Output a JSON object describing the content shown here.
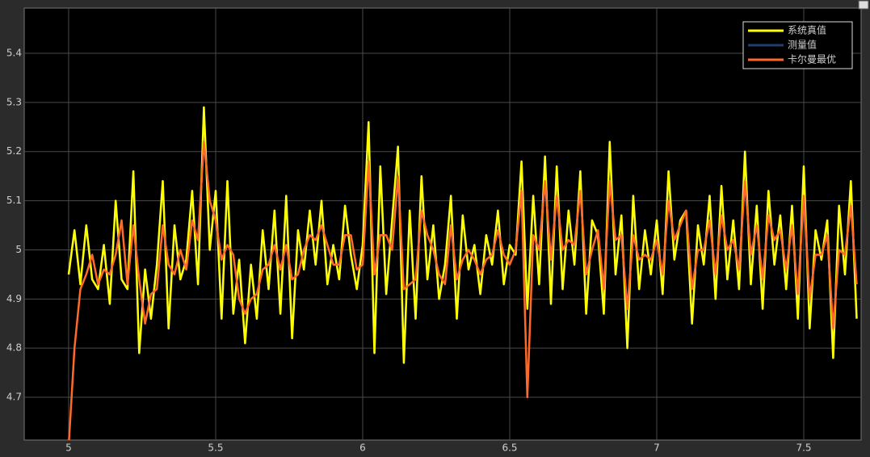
{
  "chart_data": {
    "type": "line",
    "x": [
      5,
      5.02,
      5.04,
      5.06,
      5.08,
      5.1,
      5.12,
      5.14,
      5.16,
      5.18,
      5.2,
      5.22,
      5.24,
      5.26,
      5.28,
      5.3,
      5.32,
      5.34,
      5.36,
      5.38,
      5.4,
      5.42,
      5.44,
      5.46,
      5.48,
      5.5,
      5.52,
      5.54,
      5.56,
      5.58,
      5.6,
      5.62,
      5.64,
      5.66,
      5.68,
      5.7,
      5.72,
      5.74,
      5.76,
      5.78,
      5.8,
      5.82,
      5.84,
      5.86,
      5.88,
      5.9,
      5.92,
      5.94,
      5.96,
      5.98,
      6,
      6.02,
      6.04,
      6.06,
      6.08,
      6.1,
      6.12,
      6.14,
      6.16,
      6.18,
      6.2,
      6.22,
      6.24,
      6.26,
      6.28,
      6.3,
      6.32,
      6.34,
      6.36,
      6.38,
      6.4,
      6.42,
      6.44,
      6.46,
      6.48,
      6.5,
      6.52,
      6.54,
      6.56,
      6.58,
      6.6,
      6.62,
      6.64,
      6.66,
      6.68,
      6.7,
      6.72,
      6.74,
      6.76,
      6.78,
      6.8,
      6.82,
      6.84,
      6.86,
      6.88,
      6.9,
      6.92,
      6.94,
      6.96,
      6.98,
      7,
      7.02,
      7.04,
      7.06,
      7.08,
      7.1,
      7.12,
      7.14,
      7.16,
      7.18,
      7.2,
      7.22,
      7.24,
      7.26,
      7.28,
      7.3,
      7.32,
      7.34,
      7.36,
      7.38,
      7.4,
      7.42,
      7.44,
      7.46,
      7.48,
      7.5,
      7.52,
      7.54,
      7.56,
      7.58,
      7.6,
      7.62,
      7.64,
      7.66,
      7.68
    ],
    "series": [
      {
        "name": "测量值",
        "color": "#1f3f6e",
        "values": [
          4.95,
          5.04,
          4.93,
          5.05,
          4.94,
          4.92,
          5.01,
          4.89,
          5.1,
          4.94,
          4.92,
          5.16,
          4.79,
          4.96,
          4.86,
          4.97,
          5.14,
          4.84,
          5.05,
          4.94,
          4.98,
          5.12,
          4.93,
          5.29,
          5.0,
          5.12,
          4.86,
          5.14,
          4.87,
          4.98,
          4.81,
          4.97,
          4.86,
          5.04,
          4.92,
          5.08,
          4.87,
          5.11,
          4.82,
          5.04,
          4.96,
          5.08,
          4.97,
          5.1,
          4.93,
          5.01,
          4.94,
          5.09,
          4.99,
          4.92,
          5.01,
          5.26,
          4.79,
          5.17,
          4.91,
          5.06,
          5.21,
          4.77,
          5.08,
          4.86,
          5.15,
          4.94,
          5.05,
          4.9,
          4.97,
          5.11,
          4.86,
          5.07,
          4.96,
          5.01,
          4.91,
          5.03,
          4.97,
          5.08,
          4.93,
          5.01,
          4.99,
          5.18,
          4.88,
          5.11,
          4.93,
          5.19,
          4.89,
          5.17,
          4.92,
          5.08,
          4.97,
          5.16,
          4.87,
          5.06,
          5.03,
          4.87,
          5.22,
          4.95,
          5.07,
          4.8,
          5.11,
          4.92,
          5.04,
          4.95,
          5.06,
          4.91,
          5.16,
          4.98,
          5.06,
          5.08,
          4.85,
          5.05,
          4.97,
          5.11,
          4.9,
          5.13,
          4.94,
          5.06,
          4.92,
          5.2,
          4.93,
          5.09,
          4.88,
          5.12,
          4.97,
          5.07,
          4.92,
          5.09,
          4.86,
          5.17,
          4.84,
          5.04,
          4.98,
          5.06,
          4.78,
          5.09,
          4.95,
          5.14,
          4.86
        ]
      },
      {
        "name": "系统真值",
        "color": "#ffff00",
        "values": [
          4.95,
          5.04,
          4.93,
          5.05,
          4.94,
          4.92,
          5.01,
          4.89,
          5.1,
          4.94,
          4.92,
          5.16,
          4.79,
          4.96,
          4.86,
          4.97,
          5.14,
          4.84,
          5.05,
          4.94,
          4.98,
          5.12,
          4.93,
          5.29,
          5.0,
          5.12,
          4.86,
          5.14,
          4.87,
          4.98,
          4.81,
          4.97,
          4.86,
          5.04,
          4.92,
          5.08,
          4.87,
          5.11,
          4.82,
          5.04,
          4.96,
          5.08,
          4.97,
          5.1,
          4.93,
          5.01,
          4.94,
          5.09,
          4.99,
          4.92,
          5.01,
          5.26,
          4.79,
          5.17,
          4.91,
          5.06,
          5.21,
          4.77,
          5.08,
          4.86,
          5.15,
          4.94,
          5.05,
          4.9,
          4.97,
          5.11,
          4.86,
          5.07,
          4.96,
          5.01,
          4.91,
          5.03,
          4.97,
          5.08,
          4.93,
          5.01,
          4.99,
          5.18,
          4.88,
          5.11,
          4.93,
          5.19,
          4.89,
          5.17,
          4.92,
          5.08,
          4.97,
          5.16,
          4.87,
          5.06,
          5.03,
          4.87,
          5.22,
          4.95,
          5.07,
          4.8,
          5.11,
          4.92,
          5.04,
          4.95,
          5.06,
          4.91,
          5.16,
          4.98,
          5.06,
          5.08,
          4.85,
          5.05,
          4.97,
          5.11,
          4.9,
          5.13,
          4.94,
          5.06,
          4.92,
          5.2,
          4.93,
          5.09,
          4.88,
          5.12,
          4.97,
          5.07,
          4.92,
          5.09,
          4.86,
          5.17,
          4.84,
          5.04,
          4.98,
          5.06,
          4.78,
          5.09,
          4.95,
          5.14,
          4.86
        ]
      },
      {
        "name": "卡尔曼最优",
        "color": "#ff6a2b",
        "values": [
          4.6,
          4.8,
          4.92,
          4.95,
          4.99,
          4.93,
          4.96,
          4.95,
          4.99,
          5.06,
          4.93,
          5.05,
          4.94,
          4.85,
          4.91,
          4.92,
          5.05,
          4.97,
          4.95,
          5.0,
          4.96,
          5.06,
          5.02,
          5.22,
          5.1,
          5.06,
          4.98,
          5.01,
          4.99,
          4.9,
          4.87,
          4.9,
          4.91,
          4.96,
          4.97,
          5.01,
          4.96,
          5.01,
          4.94,
          4.95,
          5.0,
          5.03,
          5.02,
          5.05,
          5.01,
          4.97,
          4.97,
          5.03,
          5.03,
          4.96,
          4.97,
          5.18,
          4.95,
          5.03,
          5.03,
          5.0,
          5.15,
          4.92,
          4.93,
          4.94,
          5.08,
          5.03,
          5.0,
          4.95,
          4.93,
          5.05,
          4.94,
          4.98,
          5.0,
          4.98,
          4.95,
          4.98,
          4.99,
          5.04,
          4.99,
          4.97,
          5.0,
          5.12,
          4.7,
          5.03,
          5.0,
          5.14,
          4.98,
          5.11,
          5.0,
          5.02,
          5.01,
          5.12,
          4.95,
          5.0,
          5.04,
          4.92,
          5.14,
          5.02,
          5.03,
          4.88,
          5.03,
          4.98,
          4.99,
          4.98,
          5.02,
          4.95,
          5.1,
          5.02,
          5.05,
          5.08,
          4.92,
          5.0,
          5.0,
          5.06,
          4.95,
          5.07,
          5.0,
          5.02,
          4.96,
          5.14,
          4.99,
          5.05,
          4.94,
          5.07,
          5.02,
          5.04,
          4.96,
          5.05,
          4.91,
          5.11,
          4.9,
          4.99,
          4.99,
          5.03,
          4.84,
          5.0,
          4.99,
          5.09,
          4.93
        ]
      }
    ],
    "legend_order": [
      1,
      0,
      2
    ],
    "xlim": [
      4.849,
      7.695
    ],
    "ylim": [
      4.613,
      5.492
    ],
    "xticks": [
      5,
      5.5,
      6,
      6.5,
      7,
      7.5
    ],
    "yticks": [
      4.7,
      4.8,
      4.9,
      5,
      5.1,
      5.2,
      5.3,
      5.4
    ],
    "grid": true,
    "legend": "upper right"
  }
}
